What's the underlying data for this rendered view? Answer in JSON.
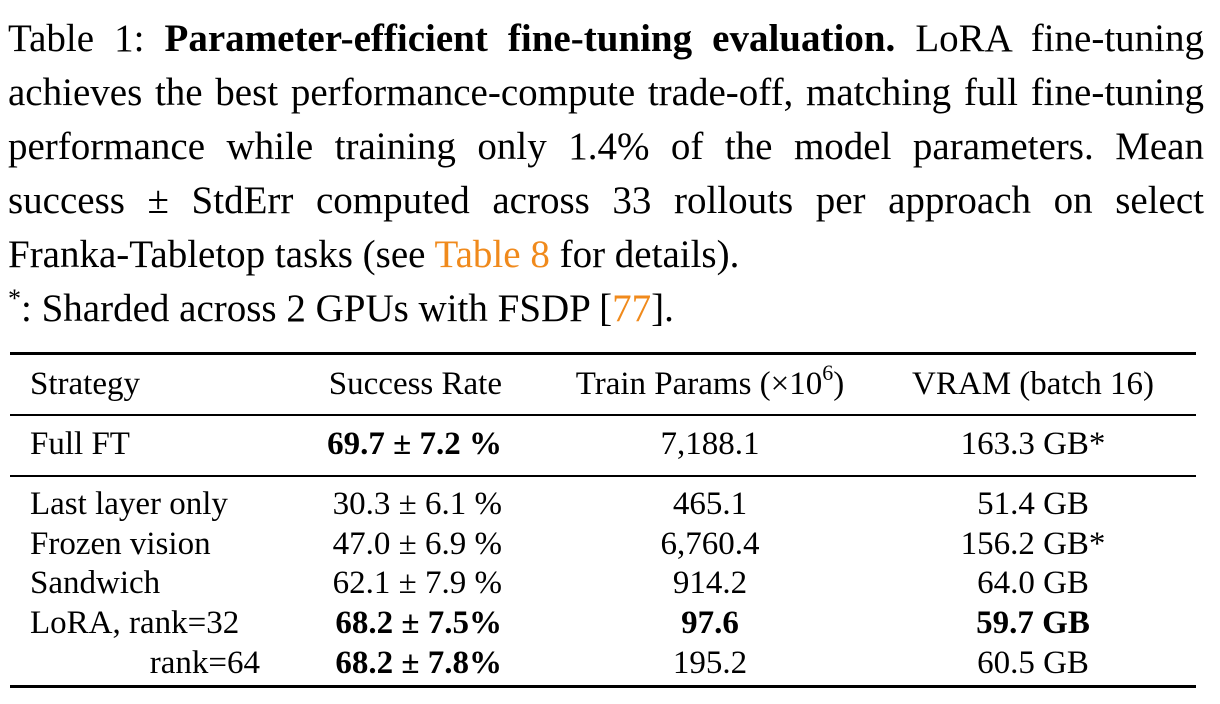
{
  "caption": {
    "label": "Table 1:",
    "title": "Parameter-efficient fine-tuning evaluation.",
    "text_part1": "LoRA fine-tuning achieves the best performance-compute trade-off, matching full fine-tuning performance while training only 1.4% of the model parameters. Mean success ± StdErr computed across 33 rollouts per approach on select Franka-Tabletop tasks (see",
    "table_ref": "Table 8",
    "text_part2": "for details).",
    "footnote_mark": "*",
    "footnote_text": ": Sharded across 2 GPUs with FSDP [",
    "citation": "77",
    "footnote_end": "].",
    "ref_color": "#f08a1c"
  },
  "table": {
    "headers": {
      "strategy": "Strategy",
      "success": "Success Rate",
      "params": "Train Params (×10",
      "params_exp": "6",
      "params_close": ")",
      "vram": "VRAM (batch 16)"
    },
    "rows": [
      {
        "strategy": "Full FT",
        "success": "69.7 ± 7.2 %",
        "params": "7,188.1",
        "vram": "163.3 GB*"
      },
      {
        "strategy": "Last layer only",
        "success": "30.3 ± 6.1 %",
        "params": "465.1",
        "vram": "51.4 GB"
      },
      {
        "strategy": "Frozen vision",
        "success": "47.0 ± 6.9 %",
        "params": "6,760.4",
        "vram": "156.2 GB*"
      },
      {
        "strategy": "Sandwich",
        "success": "62.1 ± 7.9 %",
        "params": "914.2",
        "vram": "64.0 GB"
      },
      {
        "strategy": "LoRA, rank=32",
        "success": "68.2 ± 7.5%",
        "params": "97.6",
        "vram": "59.7 GB"
      },
      {
        "strategy": "rank=64",
        "success": "68.2 ± 7.8%",
        "params": "195.2",
        "vram": "60.5 GB"
      }
    ]
  }
}
